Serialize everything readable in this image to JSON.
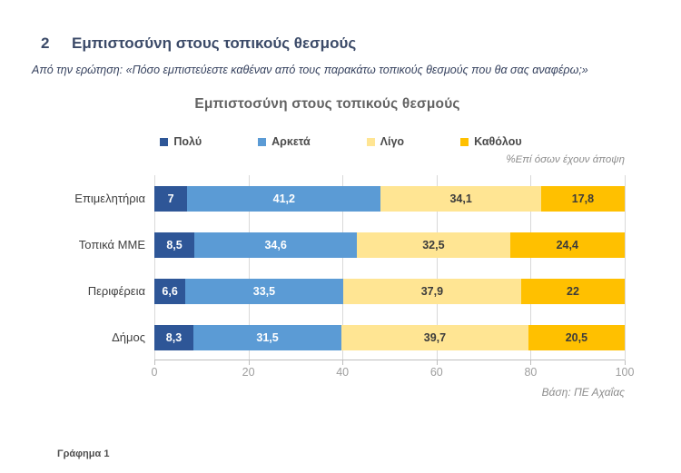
{
  "page": {
    "heading_number": "2",
    "heading_text": "Εμπιστοσύνη στους τοπικούς θεσμούς",
    "subtitle": "Από την ερώτηση: «Πόσο  εμπιστεύεστε καθέναν από τους παρακάτω τοπικούς θεσμούς που θα σας αναφέρω;»",
    "caption": "Γράφημα 1",
    "base_note": "Βάση:  ΠΕ Αχαΐας"
  },
  "chart_data": {
    "type": "bar",
    "orientation": "horizontal",
    "stacked": true,
    "title": "Εμπιστοσύνη στους τοπικούς θεσμούς",
    "note": "%Επί όσων έχουν άποψη",
    "categories": [
      "Επιμελητήρια",
      "Τοπικά ΜΜΕ",
      "Περιφέρεια",
      "Δήμος"
    ],
    "series": [
      {
        "name": "Πολύ",
        "color": "#2E5697",
        "text_color": "#FFFFFF",
        "values": [
          7,
          8.5,
          6.6,
          8.3
        ],
        "labels": [
          "7",
          "8,5",
          "6,6",
          "8,3"
        ]
      },
      {
        "name": "Αρκετά",
        "color": "#5B9BD5",
        "text_color": "#FFFFFF",
        "values": [
          41.2,
          34.6,
          33.5,
          31.5
        ],
        "labels": [
          "41,2",
          "34,6",
          "33,5",
          "31,5"
        ]
      },
      {
        "name": "Λίγο",
        "color": "#FFE593",
        "text_color": "#3B3B3B",
        "values": [
          34.1,
          32.5,
          37.9,
          39.7
        ],
        "labels": [
          "34,1",
          "32,5",
          "37,9",
          "39,7"
        ]
      },
      {
        "name": "Καθόλου",
        "color": "#FFC000",
        "text_color": "#3B3B3B",
        "values": [
          17.8,
          24.4,
          22,
          20.5
        ],
        "labels": [
          "17,8",
          "24,4",
          "22",
          "20,5"
        ]
      }
    ],
    "x_ticks": [
      0,
      20,
      40,
      60,
      80,
      100
    ],
    "xlim": [
      0,
      100
    ],
    "legend_position": "top",
    "grid": true,
    "grid_color": "#D9D9D9",
    "axis_color": "#BFBFBF",
    "tick_label_color": "#9E9E9E"
  }
}
